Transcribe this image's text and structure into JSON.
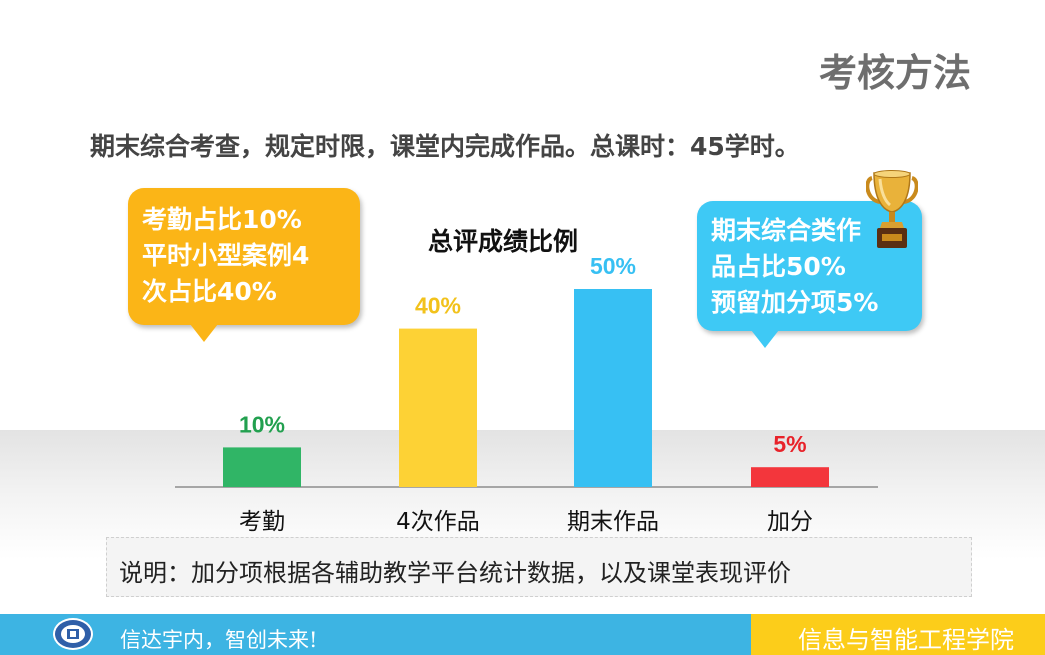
{
  "header": {
    "title": "考核方法",
    "subtitle": "期末综合考查，规定时限，课堂内完成作品。总课时：45学时。"
  },
  "callouts": {
    "left": [
      "考勤占比10%",
      "平时小型案例4",
      "次占比40%"
    ],
    "right": [
      "期末综合类作",
      "品占比50%",
      "预留加分项5%"
    ],
    "left_color": "#fbb517",
    "right_color": "#3ec9f5",
    "trophy_icon": "trophy-icon"
  },
  "chart_data": {
    "type": "bar",
    "title": "总评成绩比例",
    "categories": [
      "考勤",
      "4次作品",
      "期末作品",
      "加分"
    ],
    "values": [
      10,
      40,
      50,
      5
    ],
    "data_labels": [
      "10%",
      "40%",
      "50%",
      "5%"
    ],
    "colors": [
      "#30b566",
      "#fdd235",
      "#37c0f3",
      "#f3363c"
    ],
    "label_colors": [
      "#22a04f",
      "#f2c21b",
      "#37c0f3",
      "#e8222a"
    ],
    "ylim": [
      0,
      50
    ],
    "grid": false,
    "legend": "none"
  },
  "note": "说明：加分项根据各辅助教学平台统计数据，以及课堂表现评价",
  "footer": {
    "logo_icon": "school-seal-icon",
    "motto": "信达宇内，智创未来!",
    "college": "信息与智能工程学院",
    "left_color": "#3db4e3",
    "right_color": "#fccd1a"
  }
}
